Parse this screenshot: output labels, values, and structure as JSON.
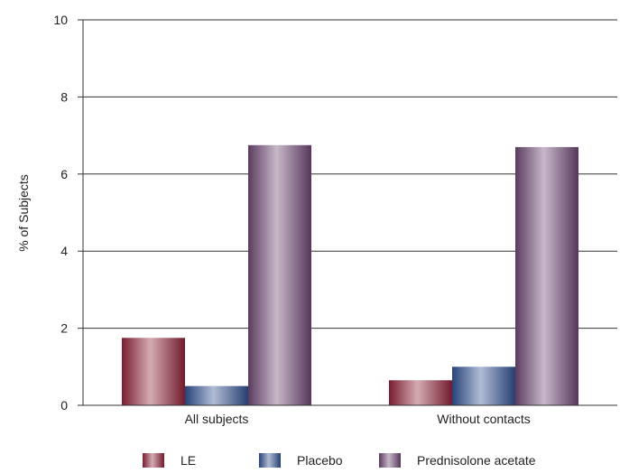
{
  "chart_data": {
    "type": "bar",
    "title": "",
    "xlabel": "",
    "ylabel": "% of Subjects",
    "ylim": [
      0,
      10
    ],
    "yticks": [
      0,
      2,
      4,
      6,
      8,
      10
    ],
    "grid": true,
    "legend_position": "bottom",
    "categories": [
      "All subjects",
      "Without contacts"
    ],
    "series": [
      {
        "name": "LE",
        "values": [
          1.75,
          0.65
        ],
        "color": "#8e2238"
      },
      {
        "name": "Placebo",
        "values": [
          0.5,
          1.0
        ],
        "color": "#2f4f8f"
      },
      {
        "name": "Prednisolone acetate",
        "values": [
          6.75,
          6.7
        ],
        "color": "#6b4570"
      }
    ]
  }
}
